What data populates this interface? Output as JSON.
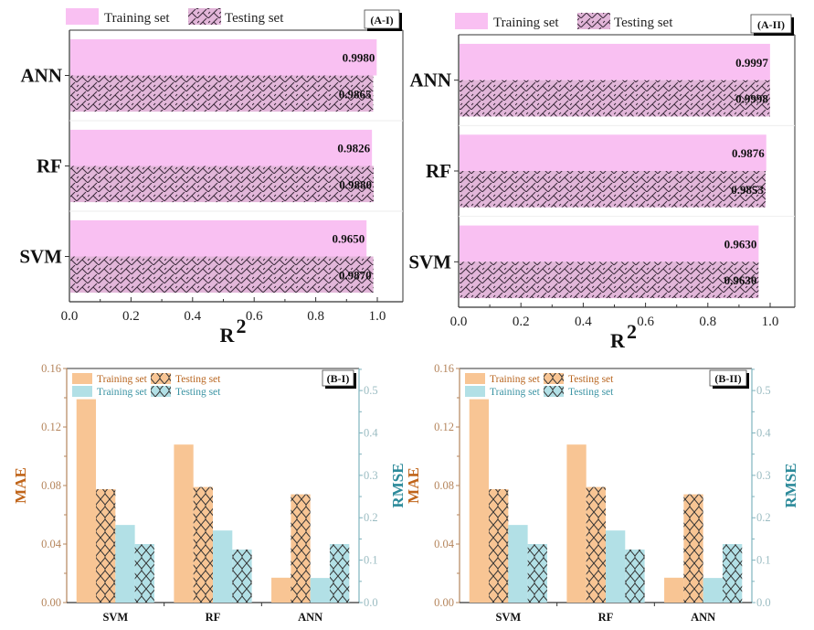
{
  "colors": {
    "pink_fill": "#f9c0f2",
    "pink_hatch_fill": "#e2b6d9",
    "hatch_line": "#3a2a3a",
    "orange_fill": "#f8c594",
    "cyan_fill": "#b2e0e6",
    "mae_axis": "#b5855c",
    "mae_label": "#c0651a",
    "rmse_axis": "#7fb3bd",
    "rmse_label": "#2c8a9a"
  },
  "chart_data": [
    {
      "id": "A-I",
      "type": "bar",
      "orientation": "horizontal",
      "panel_label": "(A-I)",
      "categories": [
        "ANN",
        "RF",
        "SVM"
      ],
      "series": [
        {
          "name": "Training set",
          "values": [
            0.998,
            0.9826,
            0.965
          ],
          "labels": [
            "0.9980",
            "0.9826",
            "0.9650"
          ]
        },
        {
          "name": "Testing set",
          "values": [
            0.9865,
            0.988,
            0.987
          ],
          "labels": [
            "0.9865",
            "0.9880",
            "0.9870"
          ]
        }
      ],
      "xlabel": "R2",
      "xlim": [
        0,
        1.08
      ],
      "xticks": [
        "0.0",
        "0.2",
        "0.4",
        "0.6",
        "0.8",
        "1.0"
      ],
      "legend": [
        "Training set",
        "Testing set"
      ],
      "legend_position": "top"
    },
    {
      "id": "A-II",
      "type": "bar",
      "orientation": "horizontal",
      "panel_label": "(A-II)",
      "categories": [
        "ANN",
        "RF",
        "SVM"
      ],
      "series": [
        {
          "name": "Training set",
          "values": [
            0.9997,
            0.9876,
            0.963
          ],
          "labels": [
            "0.9997",
            "0.9876",
            "0.9630"
          ]
        },
        {
          "name": "Testing set",
          "values": [
            0.9998,
            0.9853,
            0.963
          ],
          "labels": [
            "0.9998",
            "0.9853",
            "0.9630"
          ]
        }
      ],
      "xlabel": "R2",
      "xlim": [
        0,
        1.08
      ],
      "xticks": [
        "0.0",
        "0.2",
        "0.4",
        "0.6",
        "0.8",
        "1.0"
      ],
      "legend": [
        "Training set",
        "Testing set"
      ],
      "legend_position": "top"
    },
    {
      "id": "B-I",
      "type": "bar",
      "panel_label": "(B-I)",
      "categories": [
        "SVM",
        "RF",
        "ANN"
      ],
      "series": [
        {
          "name": "Training set (MAE)",
          "axis": "left",
          "values": [
            0.139,
            0.108,
            0.017
          ]
        },
        {
          "name": "Testing set (MAE)",
          "axis": "left",
          "values": [
            0.0775,
            0.079,
            0.074
          ]
        },
        {
          "name": "Training set (RMSE)",
          "axis": "right",
          "values": [
            0.183,
            0.17,
            0.058
          ]
        },
        {
          "name": "Testing set (RMSE)",
          "axis": "right",
          "values": [
            0.138,
            0.125,
            0.138
          ]
        }
      ],
      "ylabel_left": "MAE",
      "ylabel_right": "RMSE",
      "ylim_left": [
        0,
        0.16
      ],
      "ylim_right": [
        0,
        0.552
      ],
      "yticks_left": [
        "0.00",
        "0.04",
        "0.08",
        "0.12",
        "0.16"
      ],
      "yticks_right": [
        "0.0",
        "0.1",
        "0.2",
        "0.3",
        "0.4",
        "0.5"
      ],
      "legend": [
        "Training set",
        "Testing set",
        "Training set",
        "Testing set"
      ],
      "legend_position": "top-left"
    },
    {
      "id": "B-II",
      "type": "bar",
      "panel_label": "(B-II)",
      "categories": [
        "SVM",
        "RF",
        "ANN"
      ],
      "series": [
        {
          "name": "Training set (MAE)",
          "axis": "left",
          "values": [
            0.139,
            0.108,
            0.017
          ]
        },
        {
          "name": "Testing set (MAE)",
          "axis": "left",
          "values": [
            0.0775,
            0.079,
            0.074
          ]
        },
        {
          "name": "Training set (RMSE)",
          "axis": "right",
          "values": [
            0.183,
            0.17,
            0.058
          ]
        },
        {
          "name": "Testing set (RMSE)",
          "axis": "right",
          "values": [
            0.138,
            0.125,
            0.138
          ]
        }
      ],
      "ylabel_left": "MAE",
      "ylabel_right": "RMSE",
      "ylim_left": [
        0,
        0.16
      ],
      "ylim_right": [
        0,
        0.552
      ],
      "yticks_left": [
        "0.00",
        "0.04",
        "0.08",
        "0.12",
        "0.16"
      ],
      "yticks_right": [
        "0.0",
        "0.1",
        "0.2",
        "0.3",
        "0.4",
        "0.5"
      ],
      "legend": [
        "Training set",
        "Testing set",
        "Training set",
        "Testing set"
      ],
      "legend_position": "top-left"
    }
  ]
}
